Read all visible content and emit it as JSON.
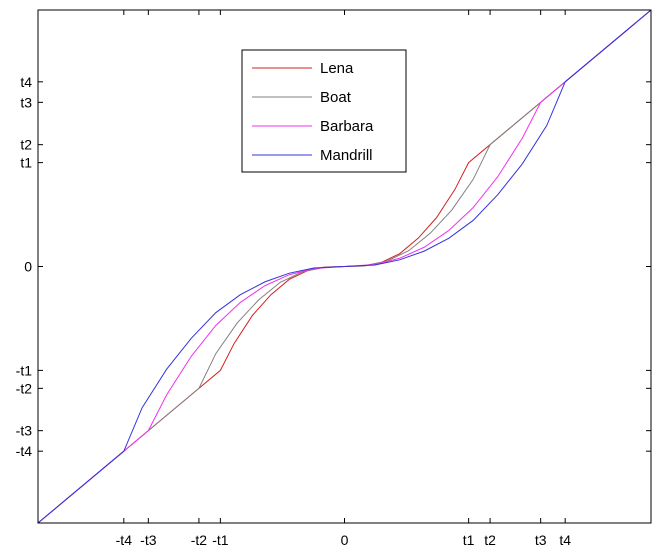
{
  "chart_data": {
    "type": "line",
    "title": "",
    "xlabel": "",
    "ylabel": "",
    "xlim": [
      -1,
      1
    ],
    "ylim": [
      -1,
      1
    ],
    "grid": false,
    "legend_position": "top-left",
    "x_ticks": [
      {
        "label": "-t4",
        "value": -0.72
      },
      {
        "label": "-t3",
        "value": -0.64
      },
      {
        "label": "-t2",
        "value": -0.475
      },
      {
        "label": "-t1",
        "value": -0.405
      },
      {
        "label": "0",
        "value": 0
      },
      {
        "label": "t1",
        "value": 0.405
      },
      {
        "label": "t2",
        "value": 0.475
      },
      {
        "label": "t3",
        "value": 0.64
      },
      {
        "label": "t4",
        "value": 0.72
      }
    ],
    "y_ticks": [
      {
        "label": "t4",
        "value": 0.72
      },
      {
        "label": "t3",
        "value": 0.64
      },
      {
        "label": "t2",
        "value": 0.475
      },
      {
        "label": "t1",
        "value": 0.405
      },
      {
        "label": "0",
        "value": 0
      },
      {
        "label": "-t1",
        "value": -0.405
      },
      {
        "label": "-t2",
        "value": -0.475
      },
      {
        "label": "-t3",
        "value": -0.64
      },
      {
        "label": "-t4",
        "value": -0.72
      }
    ],
    "series": [
      {
        "name": "Lena",
        "color": "#d42020",
        "x": [
          -1,
          -0.405,
          -0.36,
          -0.3,
          -0.24,
          -0.18,
          -0.12,
          -0.06,
          0,
          0.06,
          0.12,
          0.18,
          0.24,
          0.3,
          0.36,
          0.405,
          1
        ],
        "y": [
          -1,
          -0.405,
          -0.3,
          -0.19,
          -0.11,
          -0.05,
          -0.016,
          -0.002,
          0,
          0.002,
          0.016,
          0.05,
          0.11,
          0.19,
          0.3,
          0.405,
          1
        ]
      },
      {
        "name": "Boat",
        "color": "#808080",
        "x": [
          -1,
          -0.475,
          -0.42,
          -0.35,
          -0.28,
          -0.21,
          -0.14,
          -0.07,
          0,
          0.07,
          0.14,
          0.21,
          0.28,
          0.35,
          0.42,
          0.475,
          1
        ],
        "y": [
          -1,
          -0.475,
          -0.34,
          -0.22,
          -0.13,
          -0.062,
          -0.022,
          -0.003,
          0,
          0.003,
          0.022,
          0.062,
          0.13,
          0.22,
          0.34,
          0.475,
          1
        ]
      },
      {
        "name": "Barbara",
        "color": "#ee33ee",
        "x": [
          -1,
          -0.64,
          -0.58,
          -0.5,
          -0.42,
          -0.34,
          -0.26,
          -0.18,
          -0.1,
          0,
          0.1,
          0.18,
          0.26,
          0.34,
          0.42,
          0.5,
          0.58,
          0.64,
          1
        ],
        "y": [
          -1,
          -0.64,
          -0.5,
          -0.35,
          -0.23,
          -0.14,
          -0.075,
          -0.032,
          -0.008,
          0,
          0.008,
          0.032,
          0.075,
          0.14,
          0.23,
          0.35,
          0.5,
          0.64,
          1
        ]
      },
      {
        "name": "Mandrill",
        "color": "#3333dd",
        "x": [
          -1,
          -0.72,
          -0.66,
          -0.58,
          -0.5,
          -0.42,
          -0.34,
          -0.26,
          -0.18,
          -0.1,
          0,
          0.1,
          0.18,
          0.26,
          0.34,
          0.42,
          0.5,
          0.58,
          0.66,
          0.72,
          1
        ],
        "y": [
          -1,
          -0.72,
          -0.55,
          -0.4,
          -0.28,
          -0.18,
          -0.11,
          -0.06,
          -0.026,
          -0.006,
          0,
          0.006,
          0.026,
          0.06,
          0.11,
          0.18,
          0.28,
          0.4,
          0.55,
          0.72,
          1
        ]
      }
    ]
  }
}
